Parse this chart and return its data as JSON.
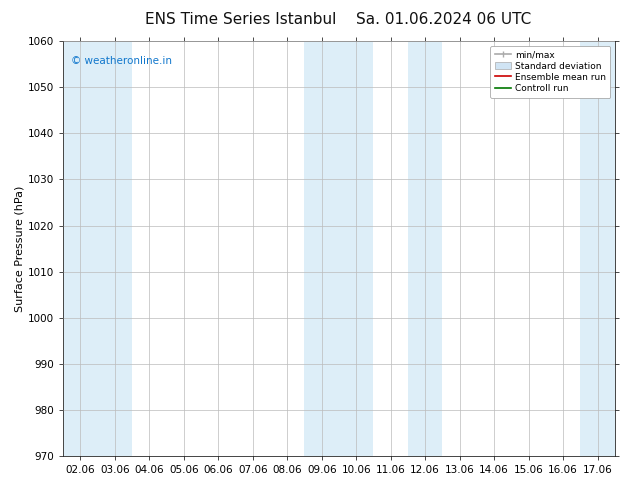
{
  "title": "ENS Time Series Istanbul",
  "title2": "Sa. 01.06.2024 06 UTC",
  "ylabel": "Surface Pressure (hPa)",
  "ylim": [
    970,
    1060
  ],
  "yticks": [
    970,
    980,
    990,
    1000,
    1010,
    1020,
    1030,
    1040,
    1050,
    1060
  ],
  "x_labels": [
    "02.06",
    "03.06",
    "04.06",
    "05.06",
    "06.06",
    "07.06",
    "08.06",
    "09.06",
    "10.06",
    "11.06",
    "12.06",
    "13.06",
    "14.06",
    "15.06",
    "16.06",
    "17.06"
  ],
  "x_positions": [
    0,
    1,
    2,
    3,
    4,
    5,
    6,
    7,
    8,
    9,
    10,
    11,
    12,
    13,
    14,
    15
  ],
  "shaded_bands": [
    {
      "xmin": -0.5,
      "xmax": 0.5,
      "color": "#ddeef8"
    },
    {
      "xmin": 0.5,
      "xmax": 1.5,
      "color": "#ddeef8"
    },
    {
      "xmin": 6.5,
      "xmax": 7.5,
      "color": "#ddeef8"
    },
    {
      "xmin": 7.5,
      "xmax": 8.5,
      "color": "#ddeef8"
    },
    {
      "xmin": 9.5,
      "xmax": 10.5,
      "color": "#ddeef8"
    },
    {
      "xmin": 14.5,
      "xmax": 15.5,
      "color": "#ddeef8"
    }
  ],
  "watermark": "© weatheronline.in",
  "watermark_color": "#1177cc",
  "background_color": "#ffffff",
  "plot_bg_color": "#ffffff",
  "grid_color": "#bbbbbb",
  "legend_labels": [
    "min/max",
    "Standard deviation",
    "Ensemble mean run",
    "Controll run"
  ],
  "legend_colors_patch": [
    "#aaaaaa",
    "#d0e4f4",
    "#ff0000",
    "#008000"
  ],
  "title_fontsize": 11,
  "ylabel_fontsize": 8,
  "tick_fontsize": 7.5,
  "watermark_fontsize": 7.5
}
